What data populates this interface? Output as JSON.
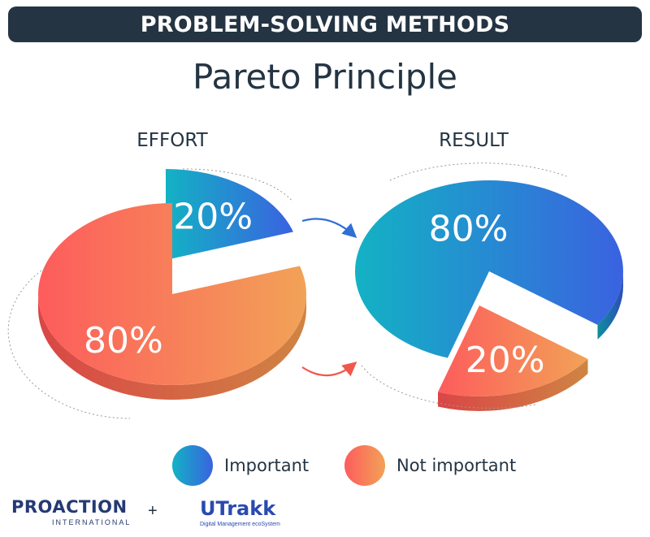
{
  "header": {
    "banner_title": "PROBLEM-SOLVING METHODS",
    "subtitle": "Pareto Principle"
  },
  "colors": {
    "banner": "#243443",
    "important_start": "#13b2c4",
    "important_end": "#3a62e0",
    "not_important_start": "#fd5c5c",
    "not_important_end": "#f2a257"
  },
  "chart_data": [
    {
      "type": "pie",
      "style": "3d-exploded",
      "title": "EFFORT",
      "slices": [
        {
          "label": "20%",
          "value": 20,
          "category": "Important"
        },
        {
          "label": "80%",
          "value": 80,
          "category": "Not important"
        }
      ]
    },
    {
      "type": "pie",
      "style": "3d-exploded",
      "title": "RESULT",
      "slices": [
        {
          "label": "80%",
          "value": 80,
          "category": "Important"
        },
        {
          "label": "20%",
          "value": 20,
          "category": "Not important"
        }
      ]
    }
  ],
  "legend": {
    "items": [
      {
        "label": "Important",
        "gradient": "important"
      },
      {
        "label": "Not important",
        "gradient": "not_important"
      }
    ]
  },
  "footer": {
    "logo_left": "PROACTION",
    "logo_left_sub": "INTERNATIONAL",
    "separator": "+",
    "logo_right": "UTrakk",
    "logo_right_sub": "Digital Management ecoSystem"
  }
}
